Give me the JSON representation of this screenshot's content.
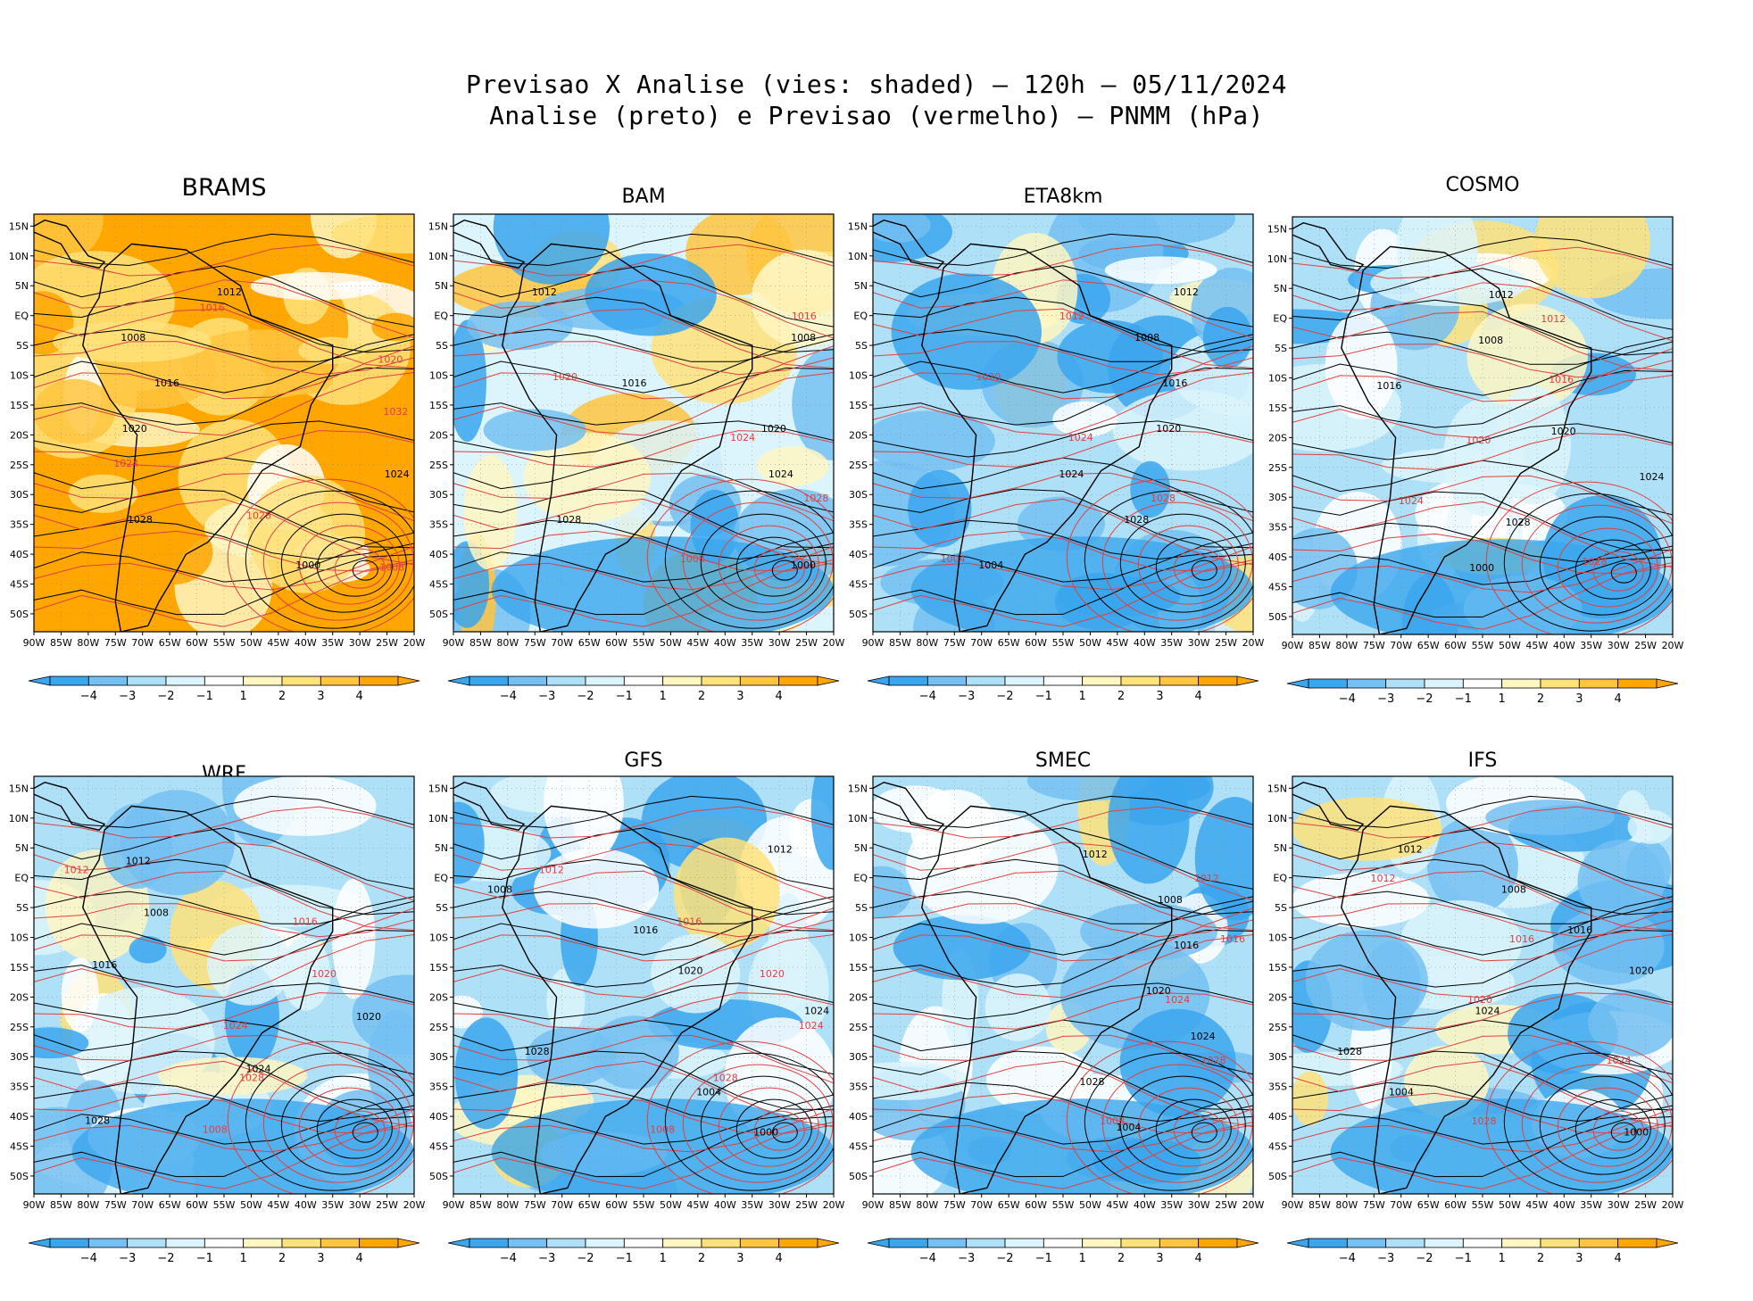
{
  "header": {
    "line1": "Previsao X Analise (vies: shaded) – 120h – 05/11/2024",
    "line2": "Analise (preto) e Previsao (vermelho) – PNMM (hPa)"
  },
  "colors": {
    "neg4": "#3aa6ee",
    "neg3": "#74c0f2",
    "neg2": "#aee0f8",
    "neg1": "#dcf4fb",
    "neutral": "#ffffff",
    "pos1": "#fff6c2",
    "pos2": "#ffe27a",
    "pos3": "#ffc440",
    "pos4": "#ffa600",
    "analysis_contour": "#000000",
    "forecast_contour": "#e04040"
  },
  "colorbar_labels": [
    "−4",
    "−3",
    "−2",
    "−1",
    "1",
    "2",
    "3",
    "4"
  ],
  "x_ticks": [
    "90W",
    "85W",
    "80W",
    "75W",
    "70W",
    "65W",
    "60W",
    "55W",
    "50W",
    "45W",
    "40W",
    "35W",
    "30W",
    "25W",
    "20W"
  ],
  "y_ticks": [
    "15N",
    "10N",
    "5N",
    "EQ",
    "5S",
    "10S",
    "15S",
    "20S",
    "25S",
    "30S",
    "35S",
    "40S",
    "45S",
    "50S"
  ],
  "chart_data": [
    {
      "type": "heatmap",
      "model": "BRAMS",
      "title": "BRAMS",
      "bias": "positive",
      "lon_range": [
        -90,
        -20
      ],
      "lat_range": [
        -53,
        17
      ],
      "analysis_labels": [
        "1012",
        "1008",
        "1016",
        "1020",
        "1024",
        "1028",
        "1000"
      ],
      "forecast_labels": [
        "1016",
        "1020",
        "1032",
        "1024",
        "1028",
        "1008"
      ]
    },
    {
      "type": "heatmap",
      "model": "BAM",
      "title": "BAM",
      "bias": "mixed",
      "lon_range": [
        -90,
        -20
      ],
      "lat_range": [
        -53,
        17
      ],
      "analysis_labels": [
        "1012",
        "1008",
        "1016",
        "1020",
        "1024",
        "1028",
        "1000"
      ],
      "forecast_labels": [
        "1016",
        "1020",
        "1024",
        "1028",
        "1008"
      ]
    },
    {
      "type": "heatmap",
      "model": "ETA8km",
      "title": "ETA8km",
      "bias": "negative",
      "lon_range": [
        -90,
        -20
      ],
      "lat_range": [
        -53,
        17
      ],
      "analysis_labels": [
        "1012",
        "1008",
        "1016",
        "1020",
        "1024",
        "1028",
        "1004"
      ],
      "forecast_labels": [
        "1012",
        "1020",
        "1024",
        "1028",
        "1004"
      ]
    },
    {
      "type": "heatmap",
      "model": "COSMO",
      "title": "COSMO",
      "bias": "negative",
      "lon_range": [
        -90,
        -20
      ],
      "lat_range": [
        -53,
        17
      ],
      "analysis_labels": [
        "1012",
        "1008",
        "1016",
        "1020",
        "1024",
        "1028",
        "1000"
      ],
      "forecast_labels": [
        "1012",
        "1016",
        "1020",
        "1024",
        "1028"
      ]
    },
    {
      "type": "heatmap",
      "model": "WRF",
      "title": "WRF",
      "bias": "negative",
      "lon_range": [
        -90,
        -20
      ],
      "lat_range": [
        -53,
        17
      ],
      "analysis_labels": [
        "1012",
        "1008",
        "1016",
        "1020",
        "1024",
        "1028"
      ],
      "forecast_labels": [
        "1012",
        "1016",
        "1020",
        "1024",
        "1028",
        "1008"
      ]
    },
    {
      "type": "heatmap",
      "model": "GFS",
      "title": "GFS",
      "bias": "negative",
      "lon_range": [
        -90,
        -20
      ],
      "lat_range": [
        -53,
        17
      ],
      "analysis_labels": [
        "1012",
        "1008",
        "1016",
        "1020",
        "1024",
        "1028",
        "1004",
        "1000"
      ],
      "forecast_labels": [
        "1012",
        "1016",
        "1020",
        "1024",
        "1028",
        "1008"
      ]
    },
    {
      "type": "heatmap",
      "model": "SMEC",
      "title": "SMEC",
      "bias": "negative",
      "lon_range": [
        -90,
        -20
      ],
      "lat_range": [
        -53,
        17
      ],
      "analysis_labels": [
        "1012",
        "1008",
        "1016",
        "1020",
        "1024",
        "1028",
        "1004"
      ],
      "forecast_labels": [
        "1012",
        "1016",
        "1024",
        "1028",
        "1008"
      ]
    },
    {
      "type": "heatmap",
      "model": "IFS",
      "title": "IFS",
      "bias": "negative",
      "lon_range": [
        -90,
        -20
      ],
      "lat_range": [
        -53,
        17
      ],
      "analysis_labels": [
        "1012",
        "1008",
        "1016",
        "1020",
        "1024",
        "1028",
        "1004",
        "1000"
      ],
      "forecast_labels": [
        "1012",
        "1016",
        "1020",
        "1024",
        "1028"
      ]
    }
  ]
}
